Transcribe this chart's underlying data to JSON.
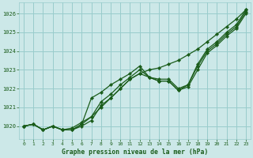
{
  "background_color": "#cce8e8",
  "grid_color": "#99cccc",
  "line_color": "#1a5c1a",
  "title": "Graphe pression niveau de la mer (hPa)",
  "xlim": [
    -0.5,
    23.5
  ],
  "ylim": [
    1019.3,
    1026.6
  ],
  "yticks": [
    1020,
    1021,
    1022,
    1023,
    1024,
    1025,
    1026
  ],
  "xticks": [
    0,
    1,
    2,
    3,
    4,
    5,
    6,
    7,
    8,
    9,
    10,
    11,
    12,
    13,
    14,
    15,
    16,
    17,
    18,
    19,
    20,
    21,
    22,
    23
  ],
  "series": {
    "line_straight": [
      1020.0,
      1020.1,
      1019.8,
      1020.0,
      1019.8,
      1019.8,
      1020.1,
      1020.5,
      1021.0,
      1021.5,
      1022.0,
      1022.5,
      1022.8,
      1023.0,
      1023.1,
      1023.3,
      1023.5,
      1023.8,
      1024.1,
      1024.5,
      1024.9,
      1025.3,
      1025.7,
      1026.2
    ],
    "line_upper": [
      1020.0,
      1020.1,
      1019.8,
      1020.0,
      1019.8,
      1019.8,
      1020.1,
      1021.5,
      1021.8,
      1022.2,
      1022.5,
      1022.8,
      1023.2,
      1022.6,
      1022.5,
      1022.5,
      1022.0,
      1022.2,
      1023.3,
      1024.1,
      1024.5,
      1025.0,
      1025.4,
      1026.2
    ],
    "line_lower": [
      1020.0,
      1020.1,
      1019.8,
      1020.0,
      1019.8,
      1019.8,
      1020.0,
      1020.3,
      1021.1,
      1021.5,
      1022.0,
      1022.5,
      1022.8,
      1022.6,
      1022.4,
      1022.4,
      1021.9,
      1022.1,
      1023.0,
      1023.9,
      1024.3,
      1024.8,
      1025.2,
      1026.0
    ],
    "line_mid": [
      1020.0,
      1020.1,
      1019.8,
      1020.0,
      1019.8,
      1019.9,
      1020.2,
      1020.5,
      1021.3,
      1021.7,
      1022.2,
      1022.6,
      1023.0,
      1022.6,
      1022.4,
      1022.4,
      1021.9,
      1022.2,
      1023.2,
      1024.0,
      1024.4,
      1024.9,
      1025.3,
      1026.1
    ]
  }
}
